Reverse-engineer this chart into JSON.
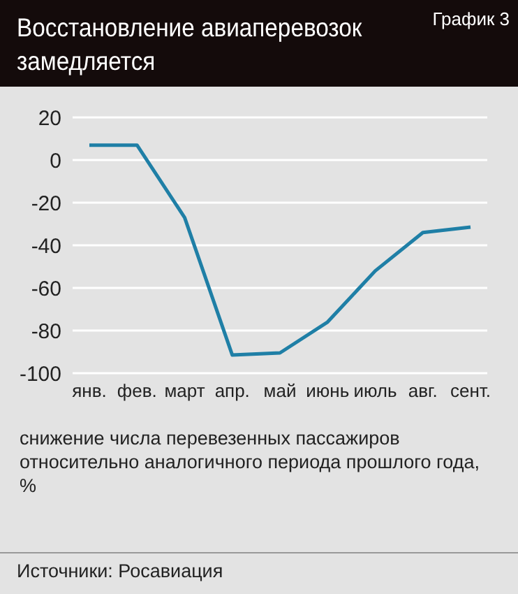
{
  "chart_data": {
    "type": "line",
    "title": "Восстановление авиаперевозок замедляется",
    "categories": [
      "янв.",
      "фев.",
      "март",
      "апр.",
      "май",
      "июнь",
      "июль",
      "авг.",
      "сент."
    ],
    "series": [
      {
        "color": "#1f7fa6",
        "values": [
          7,
          7,
          -27,
          -91.5,
          -90.5,
          -76,
          -52,
          -34,
          -31.5
        ]
      }
    ],
    "ylim": [
      -100,
      20
    ],
    "yticks": [
      -100,
      -80,
      -60,
      -40,
      -20,
      0,
      20
    ],
    "grid": "y",
    "marker": "none",
    "line_style": "solid",
    "ylabel": "снижение числа перевезенных пассажиров относительно аналогичного периода прошлого года, %",
    "annotations": [
      "График 3",
      "Источники: Росавиация"
    ]
  }
}
